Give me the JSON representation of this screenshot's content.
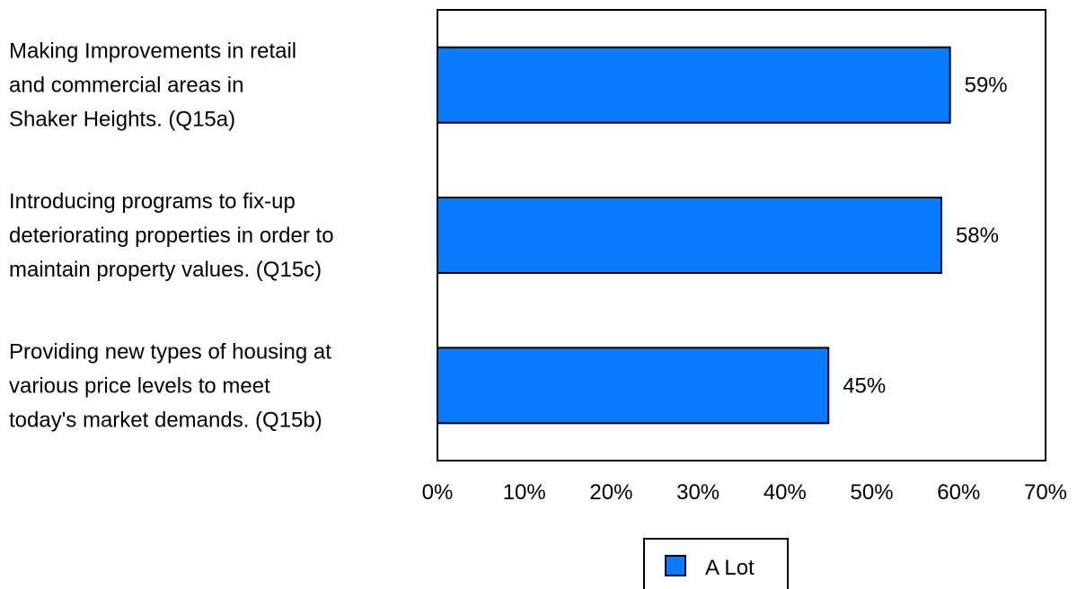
{
  "chart_data": {
    "type": "bar",
    "orientation": "horizontal",
    "categories": [
      [
        "Making Improvements in retail",
        "and commercial areas in",
        "Shaker Heights. (Q15a)"
      ],
      [
        "Introducing programs to fix-up",
        "deteriorating properties in order to",
        "maintain property values. (Q15c)"
      ],
      [
        "Providing new types of housing at",
        "various price levels to meet",
        "today's market demands. (Q15b)"
      ]
    ],
    "series": [
      {
        "name": "A Lot",
        "values": [
          59,
          58,
          45
        ],
        "color": "#0a7aff"
      }
    ],
    "data_labels": [
      "59%",
      "58%",
      "45%"
    ],
    "xlim": [
      0,
      70
    ],
    "x_ticks": [
      0,
      10,
      20,
      30,
      40,
      50,
      60,
      70
    ],
    "x_tick_labels": [
      "0%",
      "10%",
      "20%",
      "30%",
      "40%",
      "50%",
      "60%",
      "70%"
    ],
    "grid": false,
    "legend_position": "bottom"
  }
}
